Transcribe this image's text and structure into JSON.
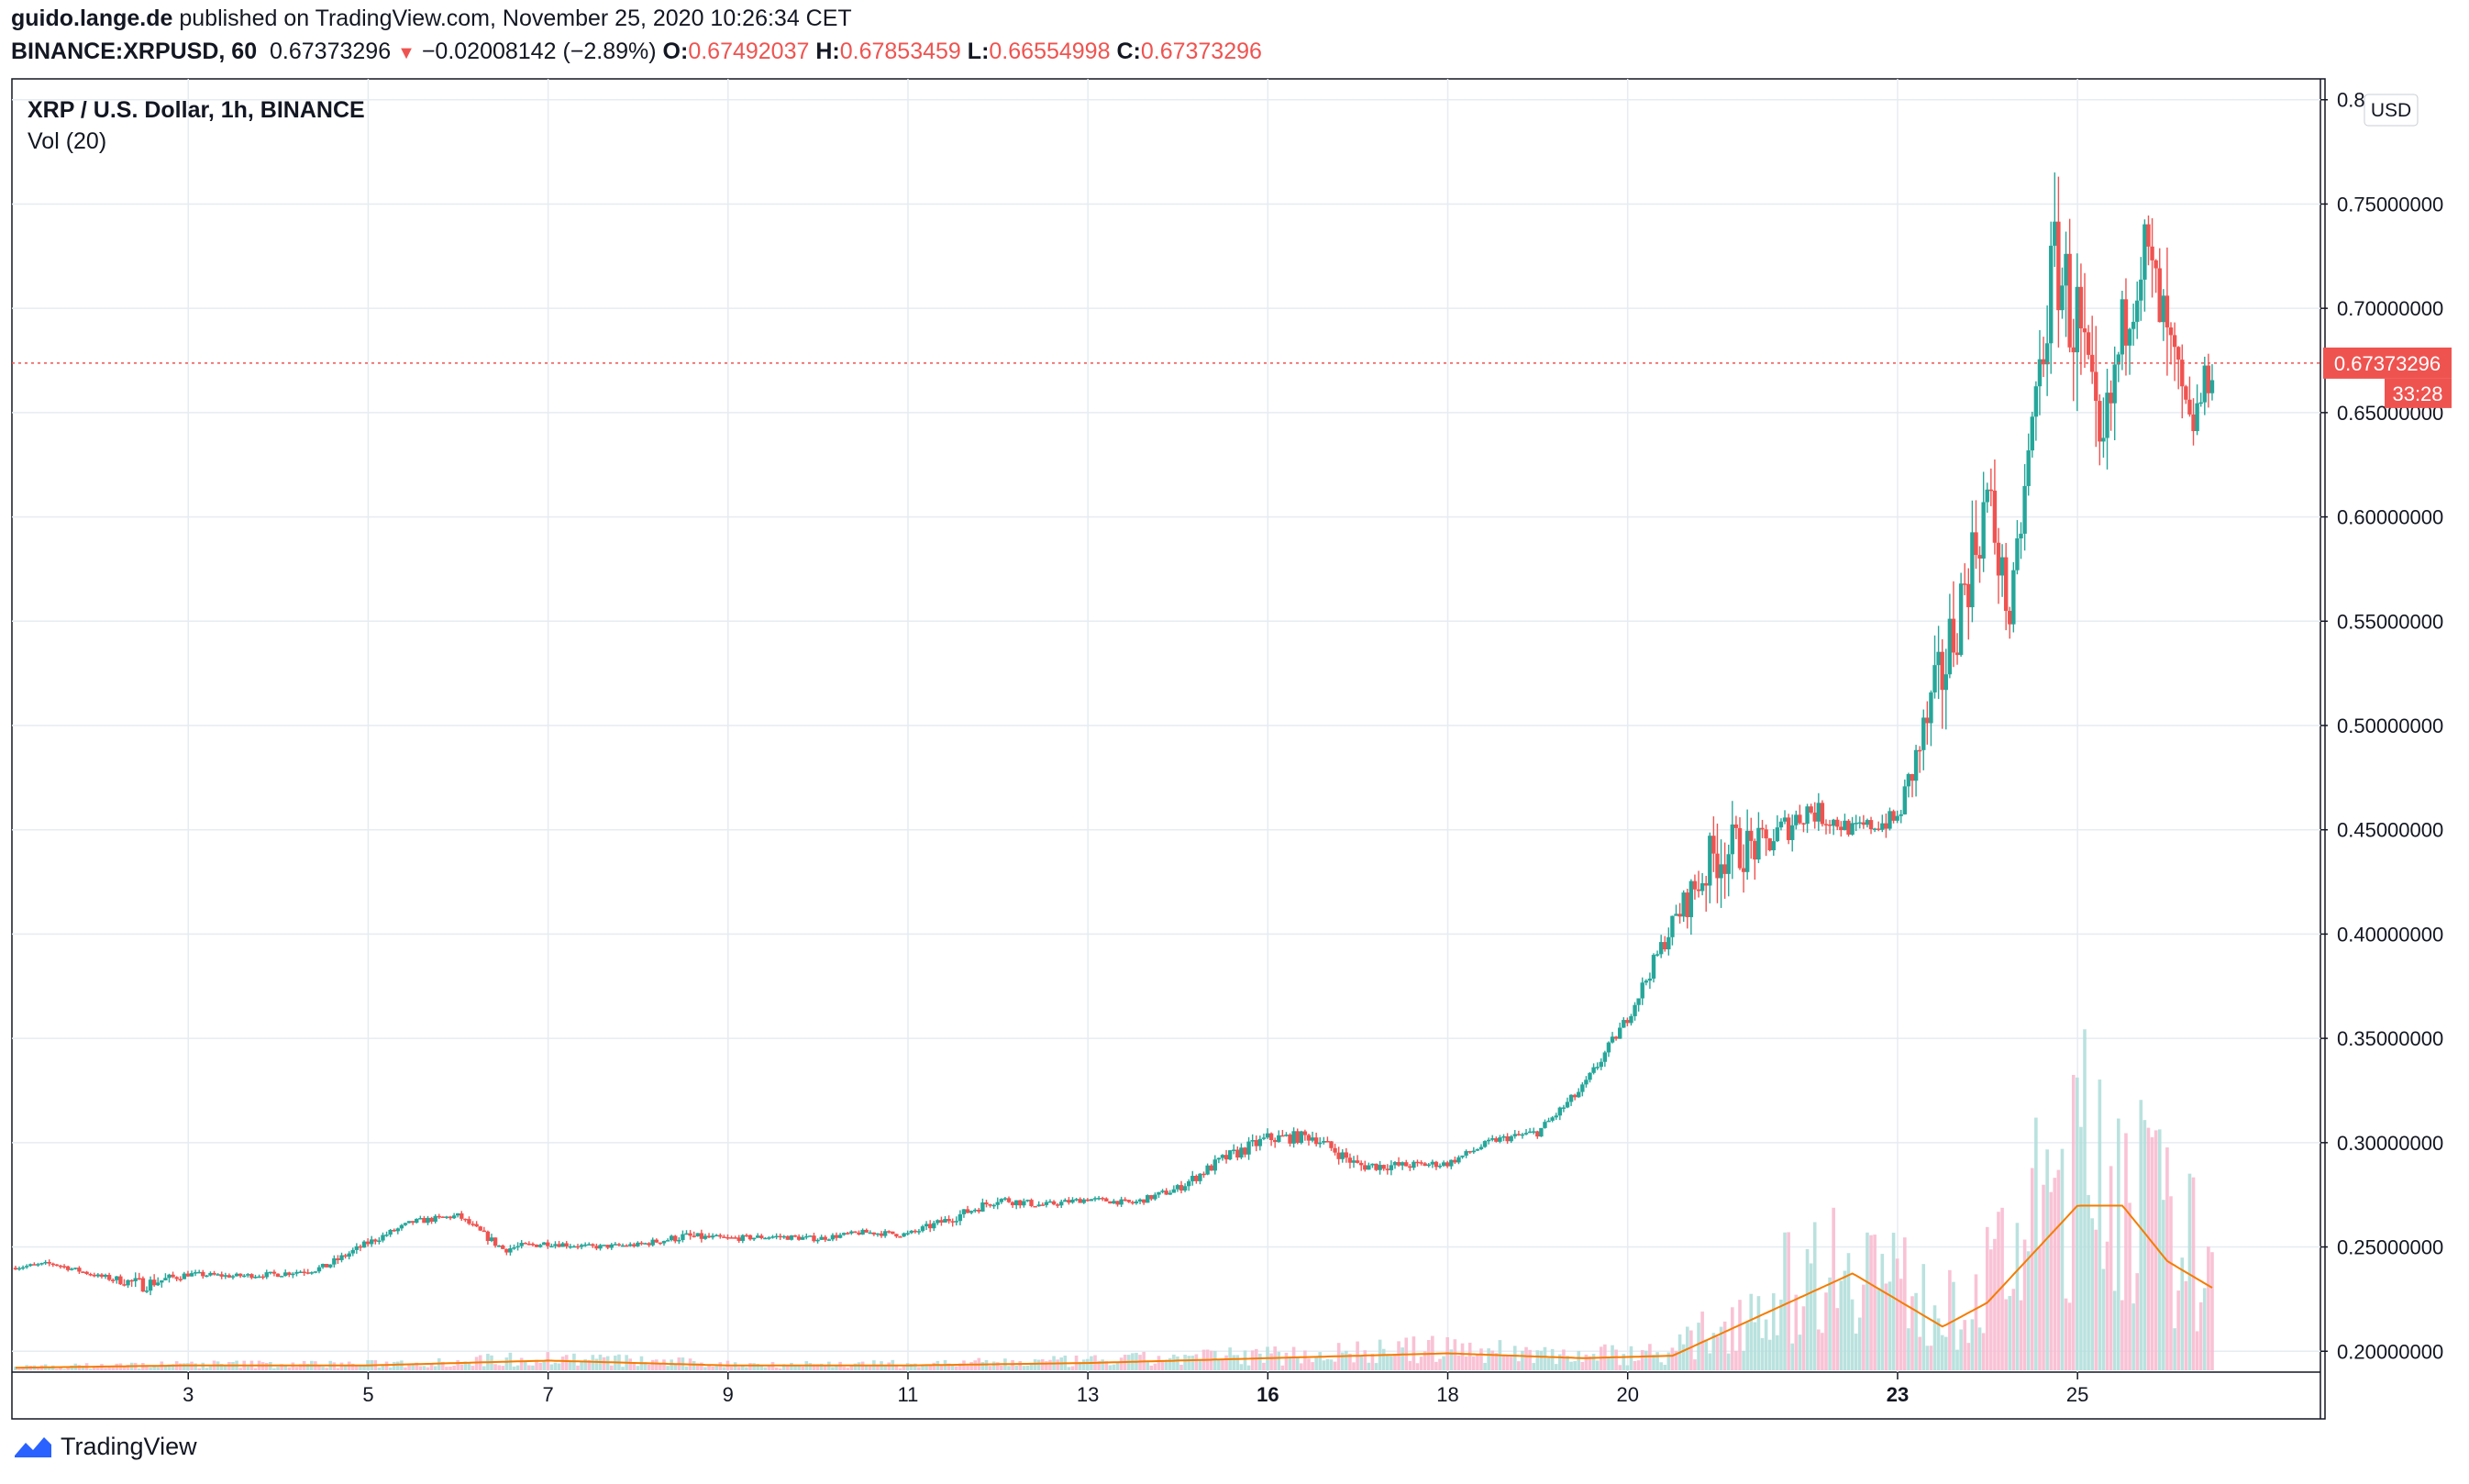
{
  "header": {
    "author": "guido.lange.de",
    "published_text": "published on TradingView.com, November 25, 2020 10:26:34 CET",
    "symbol_interval": "BINANCE:XRPUSD, 60",
    "last_price": "0.67373296",
    "change_arrow": "▼",
    "change": "−0.02008142 (−2.89%)",
    "open_label": "O:",
    "open": "0.67492037",
    "high_label": "H:",
    "high": "0.67853459",
    "low_label": "L:",
    "low": "0.66554998",
    "close_label": "C:",
    "close": "0.67373296"
  },
  "legend": {
    "title": "XRP / U.S. Dollar, 1h, BINANCE",
    "volume": "Vol (20)"
  },
  "axis": {
    "currency_badge": "USD",
    "price_tag": "0.67373296",
    "countdown": "33:28"
  },
  "footer": {
    "brand": "TradingView",
    "logo": "tradingview-logo-icon"
  },
  "colors": {
    "up": "#26a69a",
    "down": "#ef5350",
    "volume_ma": "#f57c00",
    "grid": "#e6ecf2",
    "price_line": "#ef5350"
  },
  "chart_data": {
    "type": "candlestick",
    "title": "XRP / U.S. Dollar, 1h, BINANCE",
    "interval": "1h",
    "x_ticks": [
      "3",
      "5",
      "7",
      "9",
      "11",
      "13",
      "16",
      "18",
      "20",
      "23",
      "25"
    ],
    "x_tick_days": [
      3,
      5,
      7,
      9,
      11,
      13,
      15,
      17,
      19,
      22,
      24
    ],
    "x_range_days": [
      1.04,
      26.7
    ],
    "y_ticks": [
      "0.20000000",
      "0.25000000",
      "0.30000000",
      "0.35000000",
      "0.40000000",
      "0.45000000",
      "0.50000000",
      "0.55000000",
      "0.60000000",
      "0.65000000",
      "0.70000000",
      "0.75000000",
      "0.8"
    ],
    "ylim": [
      0.19,
      0.81
    ],
    "last_close": 0.67373296,
    "series": [
      {
        "name": "XRPUSD",
        "x": [
          1.0,
          1.5,
          2.0,
          2.5,
          3.0,
          3.5,
          4.0,
          4.5,
          5.0,
          5.5,
          6.0,
          6.5,
          7.0,
          7.5,
          8.0,
          8.5,
          9.0,
          9.5,
          10.0,
          10.5,
          11.0,
          11.5,
          12.0,
          12.5,
          13.0,
          13.5,
          14.0,
          14.5,
          15.0,
          15.5,
          16.0,
          16.5,
          17.0,
          17.5,
          18.0,
          18.5,
          19.0,
          19.5,
          20.0,
          20.5,
          21.0,
          21.5,
          22.0,
          22.5,
          23.0,
          23.25,
          23.5,
          23.75,
          24.0,
          24.25,
          24.5,
          24.75,
          25.0,
          25.25,
          25.5
        ],
        "close": [
          0.24,
          0.242,
          0.236,
          0.232,
          0.237,
          0.236,
          0.237,
          0.24,
          0.252,
          0.262,
          0.265,
          0.249,
          0.252,
          0.25,
          0.251,
          0.255,
          0.254,
          0.255,
          0.254,
          0.257,
          0.256,
          0.264,
          0.273,
          0.27,
          0.273,
          0.271,
          0.278,
          0.292,
          0.302,
          0.303,
          0.289,
          0.289,
          0.29,
          0.301,
          0.305,
          0.326,
          0.36,
          0.405,
          0.44,
          0.442,
          0.46,
          0.45,
          0.455,
          0.525,
          0.61,
          0.55,
          0.645,
          0.725,
          0.69,
          0.62,
          0.69,
          0.73,
          0.68,
          0.64,
          0.674
        ],
        "high": [
          0.243,
          0.246,
          0.239,
          0.248,
          0.241,
          0.24,
          0.242,
          0.247,
          0.258,
          0.267,
          0.268,
          0.255,
          0.256,
          0.254,
          0.255,
          0.265,
          0.258,
          0.259,
          0.258,
          0.26,
          0.262,
          0.268,
          0.278,
          0.274,
          0.276,
          0.275,
          0.283,
          0.296,
          0.307,
          0.308,
          0.3,
          0.294,
          0.295,
          0.305,
          0.312,
          0.33,
          0.37,
          0.42,
          0.497,
          0.47,
          0.47,
          0.46,
          0.47,
          0.56,
          0.625,
          0.57,
          0.66,
          0.785,
          0.745,
          0.72,
          0.7,
          0.748,
          0.74,
          0.69,
          0.685
        ],
        "low": [
          0.237,
          0.238,
          0.233,
          0.228,
          0.233,
          0.233,
          0.234,
          0.236,
          0.248,
          0.258,
          0.26,
          0.243,
          0.247,
          0.247,
          0.248,
          0.252,
          0.25,
          0.251,
          0.25,
          0.253,
          0.253,
          0.255,
          0.265,
          0.265,
          0.268,
          0.267,
          0.271,
          0.279,
          0.288,
          0.292,
          0.283,
          0.281,
          0.285,
          0.295,
          0.3,
          0.315,
          0.355,
          0.39,
          0.408,
          0.42,
          0.43,
          0.438,
          0.44,
          0.45,
          0.52,
          0.515,
          0.58,
          0.64,
          0.565,
          0.585,
          0.605,
          0.66,
          0.605,
          0.62,
          0.625
        ]
      },
      {
        "name": "Vol (20)",
        "type": "volume",
        "x": [
          1.0,
          3.0,
          5.0,
          7.0,
          9.0,
          11.0,
          13.0,
          15.0,
          17.0,
          18.5,
          19.5,
          20.5,
          21.5,
          22.5,
          23.0,
          23.5,
          24.0,
          24.5,
          25.0,
          25.5
        ],
        "volume_ma_level": [
          0.01,
          0.02,
          0.02,
          0.04,
          0.02,
          0.02,
          0.03,
          0.05,
          0.07,
          0.05,
          0.06,
          0.23,
          0.4,
          0.18,
          0.28,
          0.48,
          0.68,
          0.68,
          0.45,
          0.34
        ]
      }
    ]
  }
}
